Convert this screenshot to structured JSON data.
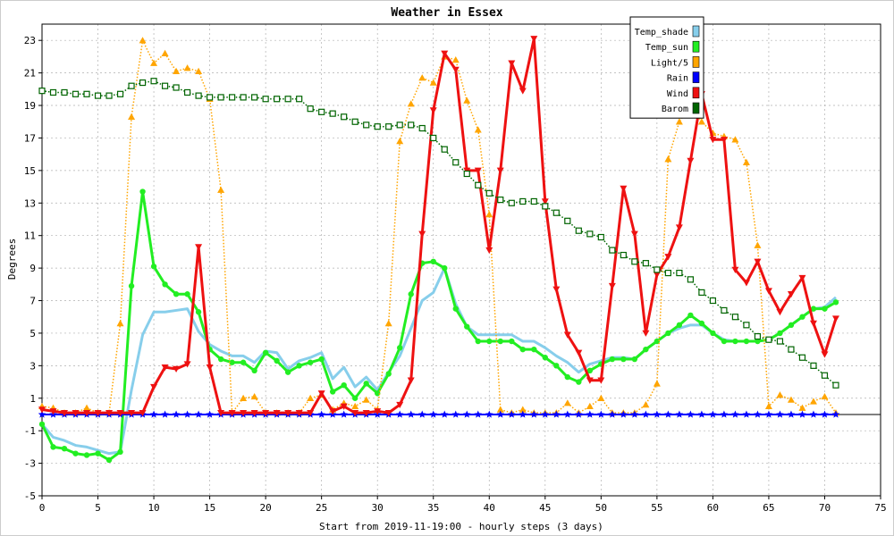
{
  "chart_data": {
    "type": "line",
    "title": "Weather in Essex",
    "xlabel": "Start from 2019-11-19:00 - hourly steps (3 days)",
    "ylabel": "Degrees",
    "xlim": [
      0,
      75
    ],
    "ylim": [
      -5,
      24
    ],
    "x_ticks": [
      0,
      5,
      10,
      15,
      20,
      25,
      30,
      35,
      40,
      45,
      50,
      55,
      60,
      65,
      70,
      75
    ],
    "y_ticks": [
      -5,
      -3,
      -1,
      1,
      3,
      5,
      7,
      9,
      11,
      13,
      15,
      17,
      19,
      21,
      23
    ],
    "grid": true,
    "legend_position": "top-right",
    "x": [
      0,
      1,
      2,
      3,
      4,
      5,
      6,
      7,
      8,
      9,
      10,
      11,
      12,
      13,
      14,
      15,
      16,
      17,
      18,
      19,
      20,
      21,
      22,
      23,
      24,
      25,
      26,
      27,
      28,
      29,
      30,
      31,
      32,
      33,
      34,
      35,
      36,
      37,
      38,
      39,
      40,
      41,
      42,
      43,
      44,
      45,
      46,
      47,
      48,
      49,
      50,
      51,
      52,
      53,
      54,
      55,
      56,
      57,
      58,
      59,
      60,
      61,
      62,
      63,
      64,
      65,
      66,
      67,
      68,
      69,
      70,
      71
    ],
    "series": [
      {
        "name": "Temp_shade",
        "color": "#87ceeb",
        "style": "solid-thick",
        "marker": "none",
        "values": [
          -0.6,
          -1.4,
          -1.6,
          -1.9,
          -2.0,
          -2.2,
          -2.4,
          -2.3,
          1.5,
          4.9,
          6.3,
          6.3,
          6.4,
          6.5,
          5.1,
          4.3,
          3.9,
          3.6,
          3.6,
          3.2,
          3.9,
          3.8,
          2.8,
          3.3,
          3.5,
          3.8,
          2.2,
          2.9,
          1.7,
          2.3,
          1.5,
          2.6,
          3.6,
          5.3,
          7.0,
          7.5,
          9.0,
          6.8,
          5.4,
          4.9,
          4.9,
          4.9,
          4.9,
          4.5,
          4.5,
          4.1,
          3.6,
          3.2,
          2.6,
          3.1,
          3.3,
          3.5,
          3.5,
          3.4,
          4.0,
          4.5,
          5.0,
          5.3,
          5.5,
          5.5,
          5.0,
          4.6,
          4.5,
          4.5,
          4.5,
          4.6,
          5.0,
          5.5,
          6.0,
          6.5,
          6.6,
          7.2
        ]
      },
      {
        "name": "Temp_sun",
        "color": "#22ee22",
        "style": "solid-thick",
        "marker": "circle",
        "values": [
          -0.6,
          -2.0,
          -2.1,
          -2.4,
          -2.5,
          -2.4,
          -2.8,
          -2.3,
          7.9,
          13.7,
          9.1,
          8.0,
          7.4,
          7.4,
          6.3,
          4.0,
          3.4,
          3.2,
          3.2,
          2.7,
          3.8,
          3.3,
          2.6,
          3.0,
          3.2,
          3.4,
          1.4,
          1.8,
          1.0,
          1.9,
          1.3,
          2.5,
          4.1,
          7.4,
          9.3,
          9.4,
          9.0,
          6.5,
          5.4,
          4.5,
          4.5,
          4.5,
          4.5,
          4.0,
          4.0,
          3.5,
          3.0,
          2.3,
          2.0,
          2.7,
          3.1,
          3.4,
          3.4,
          3.4,
          4.0,
          4.5,
          5.0,
          5.5,
          6.1,
          5.6,
          5.0,
          4.5,
          4.5,
          4.5,
          4.5,
          4.6,
          5.0,
          5.5,
          6.0,
          6.5,
          6.5,
          6.9
        ]
      },
      {
        "name": "Light/5",
        "color": "#ffa500",
        "style": "dotted",
        "marker": "triangle-up",
        "values": [
          0.5,
          0.4,
          0.1,
          0.1,
          0.4,
          0.1,
          0.1,
          5.6,
          18.3,
          23.0,
          21.6,
          22.2,
          21.1,
          21.3,
          21.1,
          19.4,
          13.8,
          0.1,
          1.0,
          1.1,
          0.1,
          0.1,
          0.1,
          0.1,
          1.0,
          1.2,
          0.3,
          0.7,
          0.5,
          0.9,
          0.3,
          5.6,
          16.8,
          19.1,
          20.7,
          20.4,
          22.0,
          21.8,
          19.3,
          17.5,
          12.3,
          0.3,
          0.1,
          0.3,
          0.1,
          0.1,
          0.1,
          0.7,
          0.1,
          0.5,
          1.0,
          0.1,
          0.1,
          0.1,
          0.6,
          1.9,
          15.7,
          18.0,
          19.0,
          18.0,
          17.3,
          17.1,
          16.9,
          15.5,
          10.4,
          0.5,
          1.2,
          0.9,
          0.4,
          0.8,
          1.1,
          0.1
        ]
      },
      {
        "name": "Rain",
        "color": "#0000ff",
        "style": "solid",
        "marker": "star",
        "values": [
          0,
          0,
          0,
          0,
          0,
          0,
          0,
          0,
          0,
          0,
          0,
          0,
          0,
          0,
          0,
          0,
          0,
          0,
          0,
          0,
          0,
          0,
          0,
          0,
          0,
          0,
          0,
          0,
          0,
          0,
          0,
          0,
          0,
          0,
          0,
          0,
          0,
          0,
          0,
          0,
          0,
          0,
          0,
          0,
          0,
          0,
          0,
          0,
          0,
          0,
          0,
          0,
          0,
          0,
          0,
          0,
          0,
          0,
          0,
          0,
          0,
          0,
          0,
          0,
          0,
          0,
          0,
          0,
          0,
          0,
          0,
          0
        ]
      },
      {
        "name": "Wind",
        "color": "#ee1111",
        "style": "solid-thick",
        "marker": "triangle-down",
        "values": [
          0.3,
          0.2,
          0.1,
          0.1,
          0.1,
          0.1,
          0.1,
          0.1,
          0.1,
          0.1,
          1.7,
          2.9,
          2.8,
          3.1,
          10.3,
          2.9,
          0.1,
          0.1,
          0.1,
          0.1,
          0.1,
          0.1,
          0.1,
          0.1,
          0.1,
          1.3,
          0.2,
          0.5,
          0.1,
          0.1,
          0.2,
          0.1,
          0.6,
          2.1,
          11.1,
          18.7,
          22.2,
          21.2,
          15.0,
          15.0,
          10.1,
          15.0,
          21.6,
          19.9,
          23.1,
          13.1,
          7.7,
          4.9,
          3.8,
          2.1,
          2.1,
          7.9,
          13.9,
          11.1,
          5.0,
          8.6,
          9.7,
          11.5,
          15.6,
          19.7,
          16.9,
          16.9,
          8.9,
          8.1,
          9.4,
          7.6,
          6.3,
          7.4,
          8.4,
          5.6,
          3.7,
          5.9
        ]
      },
      {
        "name": "Barom",
        "color": "#006400",
        "style": "dotted",
        "marker": "square-open",
        "values": [
          19.9,
          19.8,
          19.8,
          19.7,
          19.7,
          19.6,
          19.6,
          19.7,
          20.2,
          20.4,
          20.5,
          20.2,
          20.1,
          19.8,
          19.6,
          19.5,
          19.5,
          19.5,
          19.5,
          19.5,
          19.4,
          19.4,
          19.4,
          19.4,
          18.8,
          18.6,
          18.5,
          18.3,
          18.0,
          17.8,
          17.7,
          17.7,
          17.8,
          17.8,
          17.6,
          17.0,
          16.3,
          15.5,
          14.8,
          14.1,
          13.6,
          13.2,
          13.0,
          13.1,
          13.1,
          12.8,
          12.4,
          11.9,
          11.3,
          11.1,
          10.9,
          10.1,
          9.8,
          9.4,
          9.3,
          8.9,
          8.7,
          8.7,
          8.3,
          7.5,
          7.0,
          6.4,
          6.0,
          5.5,
          4.8,
          4.6,
          4.5,
          4.0,
          3.5,
          3.0,
          2.4,
          1.8
        ]
      }
    ]
  }
}
